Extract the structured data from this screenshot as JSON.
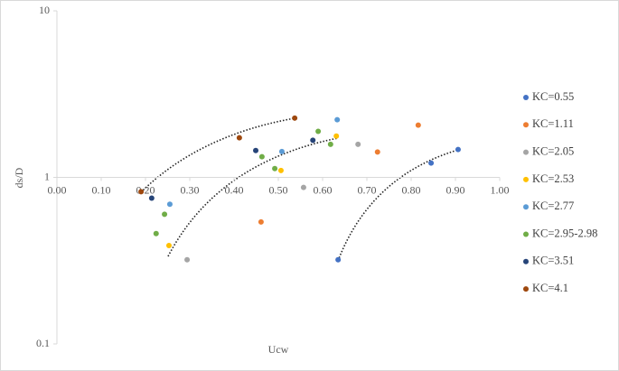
{
  "chart_data": {
    "type": "scatter",
    "x_label": "Ucw",
    "y_label": "ds/D",
    "xlim": [
      0,
      1
    ],
    "ylim": [
      0.1,
      10
    ],
    "log_y": true,
    "grid": false,
    "xticks": [
      {
        "value": 0,
        "label": "0.00"
      },
      {
        "value": 0.1,
        "label": "0.10"
      },
      {
        "value": 0.2,
        "label": "0.20"
      },
      {
        "value": 0.3,
        "label": "0.30"
      },
      {
        "value": 0.4,
        "label": "0.40"
      },
      {
        "value": 0.5,
        "label": "0.50"
      },
      {
        "value": 0.6,
        "label": "0.60"
      },
      {
        "value": 0.7,
        "label": "0.70"
      },
      {
        "value": 0.8,
        "label": "0.80"
      },
      {
        "value": 0.9,
        "label": "0.90"
      },
      {
        "value": 1,
        "label": "1.00"
      }
    ],
    "yticks": [
      0.1,
      1,
      10
    ],
    "legend": "right",
    "series": [
      {
        "name": "KC=0.55",
        "color": "#4472c4",
        "x": [
          0.635,
          0.845,
          0.906
        ],
        "values": [
          0.32,
          1.22,
          1.47
        ]
      },
      {
        "name": "KC=1.11",
        "color": "#ed7d31",
        "x": [
          0.461,
          0.724,
          0.816
        ],
        "values": [
          0.54,
          1.42,
          2.06
        ]
      },
      {
        "name": "KC=2.05",
        "color": "#a5a5a5",
        "x": [
          0.294,
          0.557,
          0.68
        ],
        "values": [
          0.32,
          0.87,
          1.58
        ]
      },
      {
        "name": "KC=2.53",
        "color": "#ffc000",
        "x": [
          0.253,
          0.506,
          0.631
        ],
        "values": [
          0.39,
          1.1,
          1.77
        ]
      },
      {
        "name": "KC=2.77",
        "color": "#5b9bd5",
        "x": [
          0.255,
          0.508,
          0.633
        ],
        "values": [
          0.69,
          1.43,
          2.22
        ]
      },
      {
        "name": "KC=2.95-2.98",
        "color": "#70ad47",
        "x": [
          0.224,
          0.243,
          0.463,
          0.492,
          0.59,
          0.618
        ],
        "values": [
          0.46,
          0.6,
          1.33,
          1.13,
          1.89,
          1.58
        ]
      },
      {
        "name": "KC=3.51",
        "color": "#264478",
        "x": [
          0.214,
          0.449,
          0.578
        ],
        "values": [
          0.75,
          1.45,
          1.67
        ]
      },
      {
        "name": "KC=4.1",
        "color": "#9e480e",
        "x": [
          0.19,
          0.412,
          0.537
        ],
        "values": [
          0.82,
          1.73,
          2.27
        ]
      }
    ]
  }
}
